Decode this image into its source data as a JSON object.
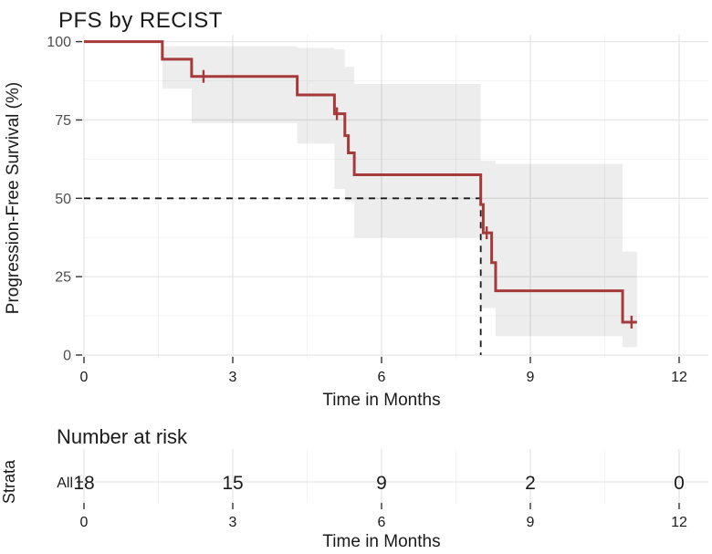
{
  "chart_data": {
    "type": "line",
    "subtype": "kaplan-meier-step-survival-curve",
    "title": "PFS by RECIST",
    "xlabel": "Time in Months",
    "ylabel": "Progression-Free Survival (%)",
    "xlim": [
      0,
      12.6
    ],
    "ylim": [
      0,
      100
    ],
    "xticks": [
      0,
      3,
      6,
      9,
      12
    ],
    "x_minor": [
      1.5,
      4.5,
      7.5,
      10.5
    ],
    "yticks": [
      0,
      25,
      50,
      75,
      100
    ],
    "y_minor": [
      12.5,
      37.5,
      62.5,
      87.5
    ],
    "grid": true,
    "legend_position": "none",
    "series": [
      {
        "name": "All",
        "color": "#a63a3a",
        "steps": [
          [
            0,
            100
          ],
          [
            1.58,
            94.4
          ],
          [
            2.17,
            88.9
          ],
          [
            4.3,
            83
          ],
          [
            5.05,
            77
          ],
          [
            5.26,
            70
          ],
          [
            5.33,
            64.5
          ],
          [
            5.45,
            57.5
          ],
          [
            8.0,
            48
          ],
          [
            8.05,
            39
          ],
          [
            8.22,
            29.5
          ],
          [
            8.3,
            20.5
          ],
          [
            10.86,
            10.5
          ]
        ],
        "end_time": 11.15,
        "censored_points": [
          [
            2.41,
            88.9
          ],
          [
            5.1,
            77
          ],
          [
            8.12,
            39
          ],
          [
            11.04,
            10.5
          ]
        ]
      }
    ],
    "confidence_band": [
      {
        "t0": 1.58,
        "t1": 2.17,
        "hi": 98.5,
        "lo": 85
      },
      {
        "t0": 2.17,
        "t1": 4.3,
        "hi": 98.5,
        "lo": 74
      },
      {
        "t0": 4.3,
        "t1": 5.05,
        "hi": 98,
        "lo": 67.5
      },
      {
        "t0": 5.05,
        "t1": 5.26,
        "hi": 97.5,
        "lo": 53
      },
      {
        "t0": 5.26,
        "t1": 5.45,
        "hi": 92,
        "lo": 49
      },
      {
        "t0": 5.45,
        "t1": 8.0,
        "hi": 86.5,
        "lo": 37.5
      },
      {
        "t0": 8.0,
        "t1": 8.3,
        "hi": 62,
        "lo": 15
      },
      {
        "t0": 8.3,
        "t1": 10.86,
        "hi": 61,
        "lo": 6
      },
      {
        "t0": 10.86,
        "t1": 11.15,
        "hi": 33,
        "lo": 2.5
      }
    ],
    "median_line": {
      "survival_pct": 50,
      "time": 8.0,
      "style": "dashed"
    },
    "risk_table": {
      "title": "Number at risk",
      "axis_label": "Strata",
      "xlabel": "Time in Months",
      "times": [
        0,
        3,
        6,
        9,
        12
      ],
      "strata": [
        {
          "label": "All",
          "color": "#b5524e",
          "counts": [
            18,
            15,
            9,
            2,
            0
          ]
        }
      ]
    },
    "colors": {
      "curve": "#a63a3a",
      "ci_band": "rgba(0,0,0,0.072)",
      "median_dash": "#1a1a1a",
      "grid_major": "#e6e6e6",
      "grid_minor": "#f3f3f3",
      "tick_mark": "#333333",
      "tick_text": "#4d4d4d"
    }
  }
}
